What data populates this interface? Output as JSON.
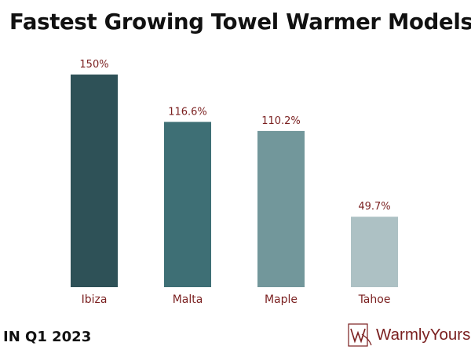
{
  "header": {
    "title": "Fastest Growing Towel Warmer Models"
  },
  "footer": {
    "period": "IN Q1 2023"
  },
  "brand": {
    "name": "WarmlyYours"
  },
  "colors": {
    "label": "#7a1f1f",
    "bars": [
      "#2e5157",
      "#3e6f75",
      "#72979b",
      "#adc1c4"
    ]
  },
  "chart_data": {
    "type": "bar",
    "title": "Fastest Growing Towel Warmer Models",
    "categories": [
      "Ibiza",
      "Malta",
      "Maple",
      "Tahoe"
    ],
    "values": [
      150,
      116.6,
      110.2,
      49.7
    ],
    "data_labels": [
      "150%",
      "116.6%",
      "110.2%",
      "49.7%"
    ],
    "unit": "%",
    "ylim": [
      0,
      150
    ],
    "grid": false,
    "legend": "none"
  }
}
